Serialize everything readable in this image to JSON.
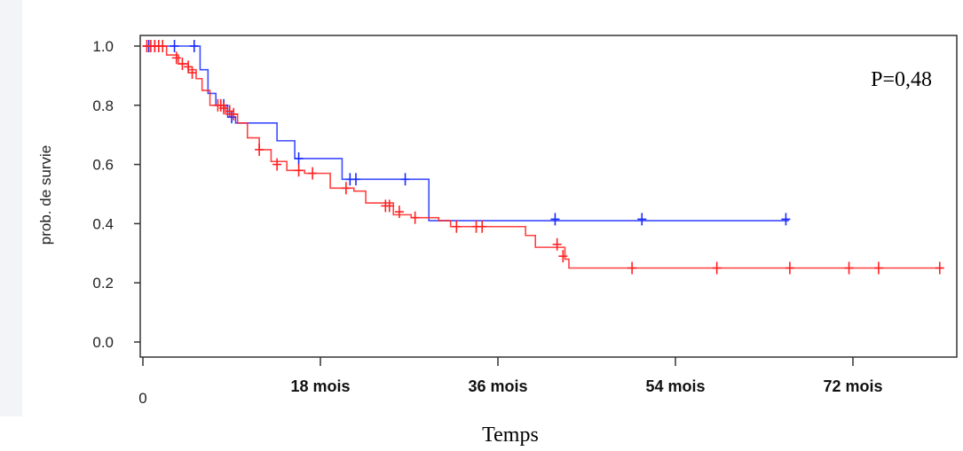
{
  "chart_data": {
    "type": "line",
    "xlabel": "Temps",
    "ylabel": "prob. de survie",
    "annotation": "P=0,48",
    "xlim": [
      0,
      82
    ],
    "ylim": [
      0,
      1
    ],
    "xticks": [
      {
        "value": 0,
        "label": "0"
      },
      {
        "value": 18,
        "label": "18 mois"
      },
      {
        "value": 36,
        "label": "36 mois"
      },
      {
        "value": 54,
        "label": "54 mois"
      },
      {
        "value": 72,
        "label": "72 mois"
      }
    ],
    "yticks": [
      {
        "value": 0.0,
        "label": "0.0"
      },
      {
        "value": 0.2,
        "label": "0.2"
      },
      {
        "value": 0.4,
        "label": "0.4"
      },
      {
        "value": 0.6,
        "label": "0.6"
      },
      {
        "value": 0.8,
        "label": "0.8"
      },
      {
        "value": 1.0,
        "label": "1.0"
      }
    ],
    "series": [
      {
        "color": "#1a2cff",
        "steps": [
          [
            0,
            1.0
          ],
          [
            5.8,
            0.92
          ],
          [
            6.6,
            0.84
          ],
          [
            7.4,
            0.8
          ],
          [
            8.6,
            0.76
          ],
          [
            9.4,
            0.74
          ],
          [
            13.6,
            0.68
          ],
          [
            15.4,
            0.62
          ],
          [
            20.2,
            0.55
          ],
          [
            29.0,
            0.41
          ],
          [
            65.5,
            0.41
          ]
        ],
        "censors": [
          [
            0.6,
            1.0
          ],
          [
            1.2,
            1.0
          ],
          [
            3.2,
            1.0
          ],
          [
            5.2,
            1.0
          ],
          [
            8.2,
            0.8
          ],
          [
            9.0,
            0.76
          ],
          [
            15.8,
            0.62
          ],
          [
            21.0,
            0.55
          ],
          [
            21.6,
            0.55
          ],
          [
            26.6,
            0.55
          ],
          [
            41.8,
            0.415
          ],
          [
            50.6,
            0.415
          ],
          [
            65.2,
            0.415
          ]
        ]
      },
      {
        "color": "#ff2020",
        "steps": [
          [
            0,
            1.0
          ],
          [
            2.4,
            0.97
          ],
          [
            3.6,
            0.94
          ],
          [
            4.6,
            0.92
          ],
          [
            5.4,
            0.89
          ],
          [
            6.0,
            0.85
          ],
          [
            6.8,
            0.8
          ],
          [
            8.4,
            0.77
          ],
          [
            9.6,
            0.74
          ],
          [
            10.6,
            0.69
          ],
          [
            11.8,
            0.65
          ],
          [
            13.0,
            0.61
          ],
          [
            14.6,
            0.58
          ],
          [
            16.4,
            0.57
          ],
          [
            19.0,
            0.52
          ],
          [
            21.4,
            0.51
          ],
          [
            22.6,
            0.47
          ],
          [
            25.4,
            0.43
          ],
          [
            27.2,
            0.42
          ],
          [
            30.0,
            0.41
          ],
          [
            31.2,
            0.39
          ],
          [
            38.8,
            0.36
          ],
          [
            39.8,
            0.32
          ],
          [
            42.8,
            0.28
          ],
          [
            43.2,
            0.25
          ],
          [
            81.0,
            0.25
          ]
        ],
        "censors": [
          [
            0.4,
            1.0
          ],
          [
            0.8,
            1.0
          ],
          [
            1.2,
            1.0
          ],
          [
            1.6,
            1.0
          ],
          [
            2.0,
            1.0
          ],
          [
            3.4,
            0.96
          ],
          [
            4.0,
            0.94
          ],
          [
            4.6,
            0.93
          ],
          [
            5.0,
            0.91
          ],
          [
            7.6,
            0.8
          ],
          [
            7.9,
            0.8
          ],
          [
            8.2,
            0.79
          ],
          [
            8.8,
            0.78
          ],
          [
            9.2,
            0.77
          ],
          [
            11.8,
            0.65
          ],
          [
            13.6,
            0.6
          ],
          [
            15.8,
            0.58
          ],
          [
            17.2,
            0.57
          ],
          [
            20.6,
            0.52
          ],
          [
            24.6,
            0.46
          ],
          [
            25.0,
            0.46
          ],
          [
            26.0,
            0.44
          ],
          [
            27.6,
            0.42
          ],
          [
            31.8,
            0.39
          ],
          [
            33.8,
            0.39
          ],
          [
            34.4,
            0.39
          ],
          [
            42.0,
            0.33
          ],
          [
            42.6,
            0.29
          ],
          [
            49.6,
            0.25
          ],
          [
            58.2,
            0.25
          ],
          [
            65.6,
            0.25
          ],
          [
            71.6,
            0.25
          ],
          [
            74.6,
            0.25
          ],
          [
            80.8,
            0.25
          ]
        ]
      }
    ]
  }
}
